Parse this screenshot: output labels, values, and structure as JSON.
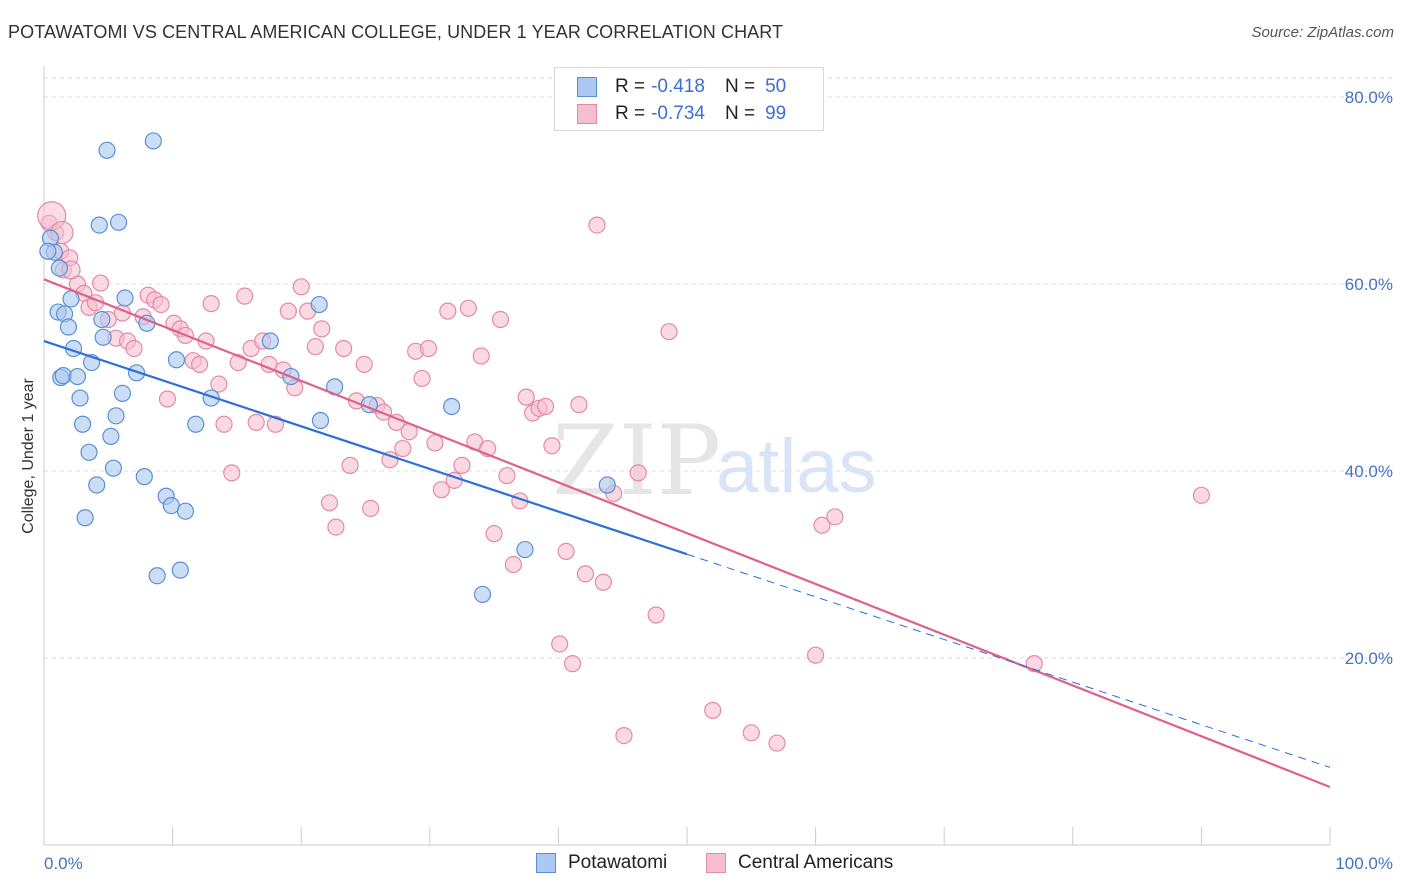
{
  "header": {
    "title": "POTAWATOMI VS CENTRAL AMERICAN COLLEGE, UNDER 1 YEAR CORRELATION CHART",
    "source": "Source: ZipAtlas.com"
  },
  "legend": {
    "rows": [
      {
        "r_label": "R =",
        "r_value": "-0.418",
        "n_label": "N =",
        "n_value": "50"
      },
      {
        "r_label": "R =",
        "r_value": "-0.734",
        "n_label": "N =",
        "n_value": "99"
      }
    ]
  },
  "watermark": {
    "zip": "ZIP",
    "atlas": "atlas"
  },
  "colors": {
    "blue_fill": "#aac8f0",
    "blue_stroke": "#5b8fd6",
    "blue_line": "#2d6fd6",
    "pink_fill": "#f6bfd0",
    "pink_stroke": "#e48aa8",
    "pink_line": "#e0608c",
    "tick_color": "#4472c4",
    "grid": "#dddddd"
  },
  "chart_data": {
    "type": "scatter",
    "title": "POTAWATOMI VS CENTRAL AMERICAN COLLEGE, UNDER 1 YEAR CORRELATION CHART",
    "xlabel": "",
    "ylabel": "College, Under 1 year",
    "xlim": [
      0,
      100
    ],
    "ylim": [
      0,
      80
    ],
    "x_ticks": [
      "0.0%",
      "100.0%"
    ],
    "y_ticks": [
      "20.0%",
      "40.0%",
      "60.0%",
      "80.0%"
    ],
    "y_tick_values": [
      20,
      40,
      60,
      80
    ],
    "grid": true,
    "legend_position": "top-center",
    "series": [
      {
        "name": "Potawatomi",
        "color": "#aac8f0",
        "r": -0.418,
        "n": 50,
        "trend": {
          "x0": 0,
          "y0": 53.9,
          "x1": 50,
          "y1": 31.1,
          "dashed_to": 100,
          "dashed_y": 8.3
        },
        "points": [
          [
            0.5,
            64.9
          ],
          [
            0.8,
            63.4
          ],
          [
            1.1,
            57.0
          ],
          [
            1.2,
            61.7
          ],
          [
            1.3,
            50.0
          ],
          [
            1.5,
            50.2
          ],
          [
            1.6,
            56.8
          ],
          [
            1.9,
            55.4
          ],
          [
            2.1,
            58.4
          ],
          [
            2.3,
            53.1
          ],
          [
            2.6,
            50.1
          ],
          [
            2.8,
            47.8
          ],
          [
            3.0,
            45.0
          ],
          [
            3.2,
            35.0
          ],
          [
            3.5,
            42.0
          ],
          [
            3.7,
            51.6
          ],
          [
            4.1,
            38.5
          ],
          [
            4.3,
            66.3
          ],
          [
            4.5,
            56.2
          ],
          [
            4.6,
            54.3
          ],
          [
            4.9,
            74.3
          ],
          [
            5.2,
            43.7
          ],
          [
            5.4,
            40.3
          ],
          [
            5.6,
            45.9
          ],
          [
            5.8,
            66.6
          ],
          [
            6.1,
            48.3
          ],
          [
            6.3,
            58.5
          ],
          [
            7.2,
            50.5
          ],
          [
            7.8,
            39.4
          ],
          [
            8.0,
            55.8
          ],
          [
            8.5,
            75.3
          ],
          [
            8.8,
            28.8
          ],
          [
            9.5,
            37.3
          ],
          [
            9.9,
            36.3
          ],
          [
            10.3,
            51.9
          ],
          [
            10.6,
            29.4
          ],
          [
            11.0,
            35.7
          ],
          [
            11.8,
            45.0
          ],
          [
            13.0,
            47.8
          ],
          [
            17.6,
            53.9
          ],
          [
            19.2,
            50.1
          ],
          [
            21.4,
            57.8
          ],
          [
            21.5,
            45.4
          ],
          [
            22.6,
            49.0
          ],
          [
            25.3,
            47.1
          ],
          [
            31.7,
            46.9
          ],
          [
            34.1,
            26.8
          ],
          [
            37.4,
            31.6
          ],
          [
            43.8,
            38.5
          ],
          [
            0.3,
            63.5
          ]
        ]
      },
      {
        "name": "Central Americans",
        "color": "#f6bfd0",
        "r": -0.734,
        "n": 99,
        "trend": {
          "x0": 0,
          "y0": 60.5,
          "x1": 100,
          "y1": 6.2
        },
        "points": [
          [
            0.4,
            66.5
          ],
          [
            0.9,
            65.5
          ],
          [
            1.3,
            63.5
          ],
          [
            1.5,
            61.5
          ],
          [
            2.0,
            62.8
          ],
          [
            2.6,
            60.0
          ],
          [
            3.1,
            59.0
          ],
          [
            3.5,
            57.5
          ],
          [
            4.0,
            58.0
          ],
          [
            4.4,
            60.1
          ],
          [
            5.0,
            56.2
          ],
          [
            5.6,
            54.2
          ],
          [
            6.1,
            56.9
          ],
          [
            6.5,
            53.9
          ],
          [
            7.0,
            53.1
          ],
          [
            7.7,
            56.5
          ],
          [
            8.1,
            58.8
          ],
          [
            8.6,
            58.3
          ],
          [
            9.1,
            57.8
          ],
          [
            9.6,
            47.7
          ],
          [
            10.1,
            55.8
          ],
          [
            10.6,
            55.2
          ],
          [
            11.0,
            54.5
          ],
          [
            11.6,
            51.8
          ],
          [
            12.1,
            51.4
          ],
          [
            12.6,
            53.9
          ],
          [
            13.0,
            57.9
          ],
          [
            13.6,
            49.3
          ],
          [
            14.0,
            45.0
          ],
          [
            14.6,
            39.8
          ],
          [
            15.1,
            51.6
          ],
          [
            15.6,
            58.7
          ],
          [
            16.1,
            53.1
          ],
          [
            16.5,
            45.2
          ],
          [
            17.0,
            53.9
          ],
          [
            17.5,
            51.4
          ],
          [
            18.0,
            45.0
          ],
          [
            18.6,
            50.8
          ],
          [
            19.0,
            57.1
          ],
          [
            19.5,
            48.9
          ],
          [
            20.0,
            59.7
          ],
          [
            20.5,
            57.1
          ],
          [
            21.1,
            53.3
          ],
          [
            21.6,
            55.2
          ],
          [
            22.2,
            36.6
          ],
          [
            22.7,
            34.0
          ],
          [
            23.3,
            53.1
          ],
          [
            23.8,
            40.6
          ],
          [
            24.3,
            47.5
          ],
          [
            24.9,
            51.4
          ],
          [
            25.4,
            36.0
          ],
          [
            25.9,
            47.0
          ],
          [
            26.4,
            46.3
          ],
          [
            26.9,
            41.2
          ],
          [
            27.4,
            45.2
          ],
          [
            27.9,
            42.4
          ],
          [
            28.4,
            44.2
          ],
          [
            28.9,
            52.8
          ],
          [
            29.4,
            49.9
          ],
          [
            29.9,
            53.1
          ],
          [
            30.4,
            43.0
          ],
          [
            30.9,
            38.0
          ],
          [
            31.4,
            57.1
          ],
          [
            31.9,
            39.0
          ],
          [
            32.5,
            40.6
          ],
          [
            33.0,
            57.4
          ],
          [
            33.5,
            43.1
          ],
          [
            34.0,
            52.3
          ],
          [
            34.5,
            42.4
          ],
          [
            35.0,
            33.3
          ],
          [
            35.5,
            56.2
          ],
          [
            36.0,
            39.5
          ],
          [
            36.5,
            30.0
          ],
          [
            37.0,
            36.8
          ],
          [
            37.5,
            47.9
          ],
          [
            38.0,
            46.2
          ],
          [
            38.5,
            46.7
          ],
          [
            39.0,
            46.9
          ],
          [
            39.5,
            42.7
          ],
          [
            40.1,
            21.5
          ],
          [
            40.6,
            31.4
          ],
          [
            41.1,
            19.4
          ],
          [
            41.6,
            47.1
          ],
          [
            42.1,
            29.0
          ],
          [
            43.0,
            66.3
          ],
          [
            43.5,
            28.1
          ],
          [
            44.3,
            37.6
          ],
          [
            45.1,
            11.7
          ],
          [
            46.2,
            39.8
          ],
          [
            47.6,
            24.6
          ],
          [
            48.6,
            54.9
          ],
          [
            52.0,
            14.4
          ],
          [
            55.0,
            12.0
          ],
          [
            57.0,
            10.9
          ],
          [
            60.0,
            20.3
          ],
          [
            60.5,
            34.2
          ],
          [
            61.5,
            35.1
          ],
          [
            77.0,
            19.4
          ],
          [
            90.0,
            37.4
          ]
        ]
      }
    ]
  },
  "bottom_legend": {
    "items": [
      "Potawatomi",
      "Central Americans"
    ]
  }
}
